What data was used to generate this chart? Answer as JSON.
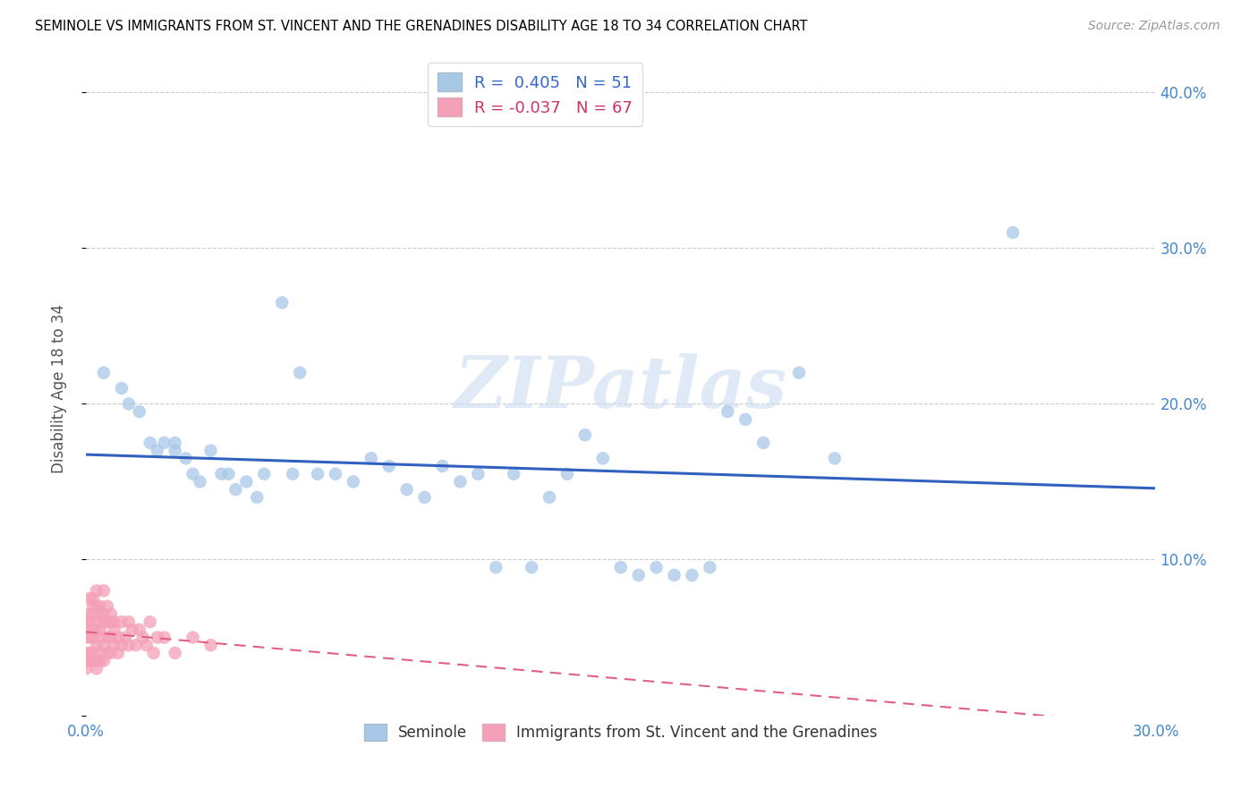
{
  "title": "SEMINOLE VS IMMIGRANTS FROM ST. VINCENT AND THE GRENADINES DISABILITY AGE 18 TO 34 CORRELATION CHART",
  "source": "Source: ZipAtlas.com",
  "ylabel": "Disability Age 18 to 34",
  "xlim": [
    0.0,
    0.3
  ],
  "ylim": [
    0.0,
    0.42
  ],
  "seminole_R": 0.405,
  "seminole_N": 51,
  "immigrants_R": -0.037,
  "immigrants_N": 67,
  "seminole_color": "#a8c8e8",
  "immigrants_color": "#f4a0b8",
  "seminole_line_color": "#3060c0",
  "immigrants_line_color": "#e06080",
  "watermark_color": "#ccddf0",
  "seminole_x": [
    0.005,
    0.01,
    0.012,
    0.015,
    0.018,
    0.02,
    0.022,
    0.025,
    0.025,
    0.028,
    0.03,
    0.032,
    0.035,
    0.038,
    0.04,
    0.042,
    0.045,
    0.048,
    0.05,
    0.055,
    0.058,
    0.06,
    0.065,
    0.07,
    0.075,
    0.08,
    0.085,
    0.09,
    0.095,
    0.1,
    0.105,
    0.11,
    0.115,
    0.12,
    0.125,
    0.13,
    0.135,
    0.14,
    0.145,
    0.15,
    0.155,
    0.16,
    0.165,
    0.17,
    0.175,
    0.18,
    0.185,
    0.19,
    0.2,
    0.21,
    0.26
  ],
  "seminole_y": [
    0.22,
    0.21,
    0.2,
    0.195,
    0.175,
    0.17,
    0.175,
    0.175,
    0.17,
    0.165,
    0.155,
    0.15,
    0.17,
    0.155,
    0.155,
    0.145,
    0.15,
    0.14,
    0.155,
    0.265,
    0.155,
    0.22,
    0.155,
    0.155,
    0.15,
    0.165,
    0.16,
    0.145,
    0.14,
    0.16,
    0.15,
    0.155,
    0.095,
    0.155,
    0.095,
    0.14,
    0.155,
    0.18,
    0.165,
    0.095,
    0.09,
    0.095,
    0.09,
    0.09,
    0.095,
    0.195,
    0.19,
    0.175,
    0.22,
    0.165,
    0.31
  ],
  "immigrants_x": [
    0.0,
    0.0,
    0.0,
    0.0,
    0.0,
    0.001,
    0.001,
    0.001,
    0.001,
    0.001,
    0.001,
    0.001,
    0.002,
    0.002,
    0.002,
    0.002,
    0.002,
    0.002,
    0.002,
    0.003,
    0.003,
    0.003,
    0.003,
    0.003,
    0.003,
    0.003,
    0.004,
    0.004,
    0.004,
    0.004,
    0.004,
    0.004,
    0.005,
    0.005,
    0.005,
    0.005,
    0.005,
    0.006,
    0.006,
    0.006,
    0.006,
    0.007,
    0.007,
    0.007,
    0.007,
    0.008,
    0.008,
    0.008,
    0.009,
    0.009,
    0.01,
    0.01,
    0.011,
    0.012,
    0.012,
    0.013,
    0.014,
    0.015,
    0.016,
    0.017,
    0.018,
    0.019,
    0.02,
    0.022,
    0.025,
    0.03,
    0.035
  ],
  "immigrants_y": [
    0.06,
    0.05,
    0.04,
    0.035,
    0.03,
    0.075,
    0.065,
    0.06,
    0.055,
    0.05,
    0.04,
    0.035,
    0.075,
    0.07,
    0.065,
    0.055,
    0.05,
    0.04,
    0.035,
    0.08,
    0.07,
    0.06,
    0.055,
    0.045,
    0.035,
    0.03,
    0.07,
    0.065,
    0.055,
    0.05,
    0.04,
    0.035,
    0.08,
    0.065,
    0.06,
    0.045,
    0.035,
    0.07,
    0.06,
    0.05,
    0.04,
    0.065,
    0.06,
    0.05,
    0.04,
    0.06,
    0.055,
    0.045,
    0.05,
    0.04,
    0.06,
    0.045,
    0.05,
    0.06,
    0.045,
    0.055,
    0.045,
    0.055,
    0.05,
    0.045,
    0.06,
    0.04,
    0.05,
    0.05,
    0.04,
    0.05,
    0.045
  ]
}
